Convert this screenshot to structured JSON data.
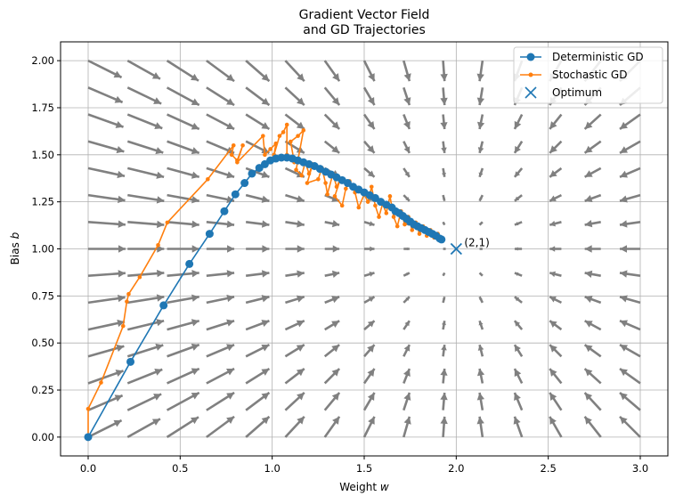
{
  "chart_data": {
    "type": "quiver+line",
    "title_line1": "Gradient Vector Field",
    "title_line2": "and GD Trajectories",
    "xlabel_prefix": "Weight ",
    "xlabel_var": "w",
    "ylabel_prefix": "Bias ",
    "ylabel_var": "b",
    "xlim": [
      -0.15,
      3.15
    ],
    "ylim": [
      -0.1,
      2.1
    ],
    "x_ticks": [
      "0.0",
      "0.5",
      "1.0",
      "1.5",
      "2.0",
      "2.5",
      "3.0"
    ],
    "x_tick_values": [
      0.0,
      0.5,
      1.0,
      1.5,
      2.0,
      2.5,
      3.0
    ],
    "y_ticks": [
      "0.00",
      "0.25",
      "0.50",
      "0.75",
      "1.00",
      "1.25",
      "1.50",
      "1.75",
      "2.00"
    ],
    "y_tick_values": [
      0.0,
      0.25,
      0.5,
      0.75,
      1.0,
      1.25,
      1.5,
      1.75,
      2.0
    ],
    "grid": true,
    "legend_position": "top-right",
    "colors": {
      "deterministic": "#1f77b4",
      "stochastic": "#ff7f0e",
      "optimum": "#1f77b4",
      "arrows": "#808080",
      "grid": "#b0b0b0"
    },
    "vector_field": {
      "x_start": 0.0,
      "x_end": 3.0,
      "nx": 15,
      "y_start": 0.0,
      "y_end": 2.0,
      "ny": 15,
      "optimum_w": 2.0,
      "optimum_b": 1.0
    },
    "series": [
      {
        "name": "Deterministic GD",
        "marker": "circle",
        "points": [
          [
            0.0,
            0.0
          ],
          [
            0.23,
            0.4
          ],
          [
            0.41,
            0.7
          ],
          [
            0.55,
            0.92
          ],
          [
            0.66,
            1.08
          ],
          [
            0.74,
            1.2
          ],
          [
            0.8,
            1.29
          ],
          [
            0.85,
            1.35
          ],
          [
            0.89,
            1.4
          ],
          [
            0.93,
            1.43
          ],
          [
            0.96,
            1.45
          ],
          [
            0.99,
            1.47
          ],
          [
            1.02,
            1.48
          ],
          [
            1.05,
            1.485
          ],
          [
            1.08,
            1.485
          ],
          [
            1.11,
            1.48
          ],
          [
            1.14,
            1.47
          ],
          [
            1.17,
            1.46
          ],
          [
            1.2,
            1.45
          ],
          [
            1.23,
            1.44
          ],
          [
            1.26,
            1.425
          ],
          [
            1.29,
            1.41
          ],
          [
            1.32,
            1.395
          ],
          [
            1.35,
            1.38
          ],
          [
            1.38,
            1.365
          ],
          [
            1.41,
            1.35
          ],
          [
            1.44,
            1.33
          ],
          [
            1.47,
            1.315
          ],
          [
            1.5,
            1.3
          ],
          [
            1.53,
            1.285
          ],
          [
            1.56,
            1.27
          ],
          [
            1.59,
            1.25
          ],
          [
            1.62,
            1.235
          ],
          [
            1.65,
            1.22
          ],
          [
            1.67,
            1.2
          ],
          [
            1.69,
            1.19
          ],
          [
            1.71,
            1.175
          ],
          [
            1.73,
            1.16
          ],
          [
            1.75,
            1.145
          ],
          [
            1.77,
            1.13
          ],
          [
            1.79,
            1.12
          ],
          [
            1.81,
            1.11
          ],
          [
            1.83,
            1.1
          ],
          [
            1.85,
            1.09
          ],
          [
            1.87,
            1.08
          ],
          [
            1.89,
            1.07
          ],
          [
            1.91,
            1.055
          ],
          [
            1.92,
            1.05
          ]
        ]
      },
      {
        "name": "Stochastic GD",
        "marker": "small-circle",
        "points": [
          [
            0.0,
            0.0
          ],
          [
            0.0,
            0.15
          ],
          [
            0.07,
            0.29
          ],
          [
            0.19,
            0.59
          ],
          [
            0.21,
            0.72
          ],
          [
            0.22,
            0.76
          ],
          [
            0.28,
            0.85
          ],
          [
            0.38,
            1.02
          ],
          [
            0.43,
            1.14
          ],
          [
            0.65,
            1.37
          ],
          [
            0.79,
            1.55
          ],
          [
            0.78,
            1.5
          ],
          [
            0.81,
            1.47
          ],
          [
            0.84,
            1.55
          ],
          [
            0.81,
            1.46
          ],
          [
            0.95,
            1.6
          ],
          [
            0.96,
            1.5
          ],
          [
            0.99,
            1.53
          ],
          [
            1.02,
            1.56
          ],
          [
            1.01,
            1.5
          ],
          [
            1.04,
            1.6
          ],
          [
            1.06,
            1.62
          ],
          [
            1.08,
            1.66
          ],
          [
            1.08,
            1.5
          ],
          [
            1.12,
            1.46
          ],
          [
            1.1,
            1.57
          ],
          [
            1.14,
            1.6
          ],
          [
            1.17,
            1.63
          ],
          [
            1.13,
            1.42
          ],
          [
            1.16,
            1.39
          ],
          [
            1.18,
            1.46
          ],
          [
            1.2,
            1.4
          ],
          [
            1.22,
            1.45
          ],
          [
            1.19,
            1.35
          ],
          [
            1.25,
            1.37
          ],
          [
            1.27,
            1.43
          ],
          [
            1.29,
            1.35
          ],
          [
            1.3,
            1.29
          ],
          [
            1.33,
            1.4
          ],
          [
            1.35,
            1.33
          ],
          [
            1.37,
            1.37
          ],
          [
            1.34,
            1.28
          ],
          [
            1.38,
            1.23
          ],
          [
            1.4,
            1.32
          ],
          [
            1.42,
            1.36
          ],
          [
            1.45,
            1.3
          ],
          [
            1.47,
            1.22
          ],
          [
            1.5,
            1.29
          ],
          [
            1.52,
            1.25
          ],
          [
            1.54,
            1.33
          ],
          [
            1.56,
            1.23
          ],
          [
            1.58,
            1.17
          ],
          [
            1.6,
            1.24
          ],
          [
            1.62,
            1.19
          ],
          [
            1.64,
            1.28
          ],
          [
            1.66,
            1.17
          ],
          [
            1.68,
            1.12
          ],
          [
            1.7,
            1.2
          ],
          [
            1.72,
            1.13
          ],
          [
            1.74,
            1.17
          ],
          [
            1.76,
            1.1
          ],
          [
            1.78,
            1.14
          ],
          [
            1.8,
            1.08
          ],
          [
            1.82,
            1.12
          ],
          [
            1.84,
            1.07
          ],
          [
            1.86,
            1.1
          ],
          [
            1.88,
            1.06
          ],
          [
            1.9,
            1.08
          ],
          [
            1.92,
            1.05
          ]
        ]
      }
    ],
    "optimum": {
      "name": "Optimum",
      "w": 2.0,
      "b": 1.0,
      "marker": "x",
      "label": "(2,1)"
    }
  }
}
